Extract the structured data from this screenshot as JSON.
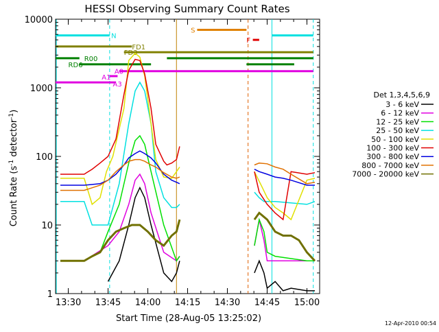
{
  "chart_data": {
    "type": "line",
    "title": "HESSI Observing Summary Count Rates",
    "xlabel": "Start Time (28-Aug-05 13:25:02)",
    "ylabel_main": "Count Rate (s",
    "ylabel_sup1": "-1",
    "ylabel_mid": " detector",
    "ylabel_sup2": "-1",
    "ylabel_end": ")",
    "x_range_min": [
      13.42,
      15.08
    ],
    "y_range": [
      1,
      10000
    ],
    "y_scale": "log",
    "x_ticks": [
      {
        "t": 13.5,
        "label": "13:30"
      },
      {
        "t": 13.75,
        "label": "13:45"
      },
      {
        "t": 14.0,
        "label": "14:00"
      },
      {
        "t": 14.25,
        "label": "14:15"
      },
      {
        "t": 14.5,
        "label": "14:30"
      },
      {
        "t": 14.75,
        "label": "14:45"
      },
      {
        "t": 15.0,
        "label": "15:00"
      }
    ],
    "y_ticks": [
      {
        "v": 1,
        "label": "1"
      },
      {
        "v": 10,
        "label": "10"
      },
      {
        "v": 100,
        "label": "100"
      },
      {
        "v": 1000,
        "label": "1000"
      },
      {
        "v": 10000,
        "label": "10000"
      }
    ],
    "legend_title": "Det 1,3,4,5,6,9",
    "legend_position": "right",
    "series": [
      {
        "name": "3 - 6 keV",
        "color": "#000000",
        "x": [
          13.45,
          13.6,
          13.75,
          13.82,
          13.88,
          13.92,
          13.95,
          13.98,
          14.02,
          14.1,
          14.15,
          14.18,
          14.2,
          14.3,
          14.65,
          14.67,
          14.7,
          14.73,
          14.75,
          14.8,
          14.85,
          14.9,
          15.0,
          15.05
        ],
        "y": [
          null,
          null,
          1.5,
          3,
          10,
          25,
          35,
          25,
          10,
          2,
          1.5,
          2,
          3,
          null,
          null,
          2,
          3,
          2,
          1.2,
          1.5,
          1.1,
          1.2,
          1.1,
          1.1
        ]
      },
      {
        "name": "6 - 12 keV",
        "color": "#e000e0",
        "x": [
          13.45,
          13.6,
          13.75,
          13.82,
          13.88,
          13.92,
          13.95,
          13.98,
          14.02,
          14.1,
          14.18,
          14.2,
          14.3,
          14.65,
          14.67,
          14.7,
          14.73,
          14.75,
          14.8,
          15.0,
          15.05
        ],
        "y": [
          3,
          3,
          5,
          8,
          20,
          45,
          55,
          40,
          15,
          4,
          3,
          3.5,
          null,
          null,
          5,
          12,
          6,
          3,
          3,
          3,
          3
        ]
      },
      {
        "name": "12 - 25 keV",
        "color": "#00e000",
        "x": [
          13.45,
          13.6,
          13.7,
          13.75,
          13.82,
          13.88,
          13.92,
          13.95,
          13.98,
          14.02,
          14.1,
          14.18,
          14.2,
          14.3,
          14.65,
          14.67,
          14.7,
          14.73,
          14.75,
          14.8,
          15.0,
          15.05
        ],
        "y": [
          3,
          3,
          4,
          8,
          20,
          80,
          170,
          200,
          150,
          60,
          10,
          3,
          3.5,
          null,
          null,
          5,
          12,
          8,
          4,
          3.5,
          3,
          3
        ]
      },
      {
        "name": "25 - 50 keV",
        "color": "#00e0e0",
        "x": [
          13.45,
          13.6,
          13.65,
          13.7,
          13.75,
          13.82,
          13.88,
          13.92,
          13.95,
          13.98,
          14.02,
          14.05,
          14.1,
          14.15,
          14.18,
          14.2,
          14.3,
          14.65,
          14.67,
          14.7,
          14.73,
          14.75,
          14.8,
          15.0,
          15.05
        ],
        "y": [
          22,
          22,
          10,
          10,
          10,
          40,
          300,
          900,
          1200,
          900,
          300,
          60,
          25,
          18,
          18,
          20,
          null,
          null,
          30,
          25,
          22,
          22,
          22,
          20,
          22
        ]
      },
      {
        "name": "50 - 100 keV",
        "color": "#e0e000",
        "x": [
          13.45,
          13.6,
          13.65,
          13.7,
          13.74,
          13.78,
          13.85,
          13.88,
          13.92,
          13.95,
          13.98,
          14.02,
          14.05,
          14.1,
          14.15,
          14.18,
          14.2,
          14.3,
          14.65,
          14.67,
          14.72,
          14.75,
          14.8,
          14.85,
          14.9,
          15.0,
          15.05
        ],
        "y": [
          48,
          48,
          20,
          25,
          60,
          100,
          500,
          2500,
          3200,
          2800,
          1500,
          300,
          90,
          50,
          48,
          60,
          70,
          null,
          null,
          60,
          35,
          25,
          18,
          15,
          12,
          45,
          48
        ]
      },
      {
        "name": "100 - 300 keV",
        "color": "#e00000",
        "x": [
          13.45,
          13.6,
          13.65,
          13.7,
          13.75,
          13.8,
          13.85,
          13.88,
          13.92,
          13.95,
          13.98,
          14.02,
          14.05,
          14.1,
          14.12,
          14.15,
          14.18,
          14.2,
          14.3,
          14.65,
          14.67,
          14.7,
          14.75,
          14.8,
          14.85,
          14.9,
          15.0,
          15.05
        ],
        "y": [
          55,
          55,
          65,
          80,
          100,
          180,
          800,
          1800,
          2600,
          2500,
          1600,
          500,
          150,
          85,
          75,
          80,
          90,
          140,
          null,
          null,
          60,
          30,
          20,
          15,
          12,
          60,
          55,
          58
        ]
      },
      {
        "name": "300 - 800 keV",
        "color": "#0000e0",
        "x": [
          13.45,
          13.6,
          13.7,
          13.75,
          13.8,
          13.85,
          13.88,
          13.92,
          13.95,
          13.98,
          14.02,
          14.05,
          14.1,
          14.15,
          14.18,
          14.2,
          14.3,
          14.65,
          14.67,
          14.7,
          14.75,
          14.8,
          14.85,
          14.9,
          15.0,
          15.05
        ],
        "y": [
          38,
          38,
          40,
          45,
          55,
          75,
          95,
          110,
          120,
          110,
          95,
          80,
          55,
          45,
          42,
          40,
          null,
          null,
          65,
          60,
          55,
          50,
          48,
          45,
          38,
          38
        ]
      },
      {
        "name": "800 - 7000 keV",
        "color": "#e07000",
        "x": [
          13.45,
          13.6,
          13.7,
          13.75,
          13.8,
          13.85,
          13.88,
          13.92,
          13.95,
          13.98,
          14.02,
          14.05,
          14.1,
          14.15,
          14.18,
          14.2,
          14.3,
          14.65,
          14.67,
          14.7,
          14.75,
          14.8,
          14.85,
          14.9,
          15.0,
          15.05
        ],
        "y": [
          32,
          32,
          38,
          45,
          60,
          75,
          85,
          90,
          90,
          85,
          75,
          70,
          58,
          50,
          48,
          50,
          null,
          null,
          75,
          80,
          78,
          70,
          65,
          55,
          40,
          42
        ]
      },
      {
        "name": "7000 - 20000 keV",
        "color": "#707000",
        "x": [
          13.45,
          13.6,
          13.65,
          13.7,
          13.75,
          13.8,
          13.85,
          13.9,
          13.95,
          14.0,
          14.05,
          14.1,
          14.15,
          14.18,
          14.2,
          14.3,
          14.65,
          14.67,
          14.7,
          14.75,
          14.8,
          14.85,
          14.9,
          14.95,
          15.0,
          15.05
        ],
        "y": [
          3,
          3,
          3.5,
          4,
          6,
          8,
          9,
          10,
          10,
          8,
          6,
          5,
          7,
          8,
          12,
          null,
          null,
          12,
          15,
          12,
          8,
          7,
          7,
          6,
          4,
          3
        ]
      }
    ],
    "attenuator_labels": [
      {
        "text": "N",
        "color": "#00e0e0"
      },
      {
        "text": "FD1",
        "color": "#808000"
      },
      {
        "text": "FD3",
        "color": "#808000"
      },
      {
        "text": "R00",
        "color": "#008000"
      },
      {
        "text": "RD6",
        "color": "#008000"
      },
      {
        "text": "A0",
        "color": "#e000e0"
      },
      {
        "text": "A1",
        "color": "#e000e0"
      },
      {
        "text": "A3",
        "color": "#e000e0"
      },
      {
        "text": "S",
        "color": "#e08000"
      },
      {
        "text": "F",
        "color": "#e00000"
      }
    ],
    "bar_segments": [
      {
        "label": "N",
        "color": "#00e0e0",
        "value": 5800,
        "t0": 13.42,
        "t1": 13.76
      },
      {
        "label": "N",
        "color": "#00e0e0",
        "value": 5800,
        "t0": 14.78,
        "t1": 15.04
      },
      {
        "label": "FD1",
        "color": "#808000",
        "value": 4000,
        "t0": 13.42,
        "t1": 13.9
      },
      {
        "label": "FD3",
        "color": "#808000",
        "value": 3300,
        "t0": 13.85,
        "t1": 15.04
      },
      {
        "label": "R00",
        "color": "#008000",
        "value": 2700,
        "t0": 13.42,
        "t1": 13.57
      },
      {
        "label": "R00",
        "color": "#008000",
        "value": 2700,
        "t0": 14.12,
        "t1": 15.04
      },
      {
        "label": "RD6",
        "color": "#008000",
        "value": 2200,
        "t0": 13.57,
        "t1": 14.02
      },
      {
        "label": "RD6",
        "color": "#008000",
        "value": 2200,
        "t0": 14.62,
        "t1": 14.92
      },
      {
        "label": "A0",
        "color": "#e000e0",
        "value": 1750,
        "t0": 13.82,
        "t1": 15.04
      },
      {
        "label": "A1",
        "color": "#e000e0",
        "value": 1480,
        "t0": 13.76,
        "t1": 13.81
      },
      {
        "label": "A3",
        "color": "#e000e0",
        "value": 1200,
        "t0": 13.42,
        "t1": 13.8
      },
      {
        "label": "S",
        "color": "#e08000",
        "value": 7000,
        "t0": 14.31,
        "t1": 14.62
      },
      {
        "label": "F",
        "color": "#e00000",
        "value": 5000,
        "t0": 14.66,
        "t1": 14.7
      }
    ],
    "timestamp": "12-Apr-2010 00:54"
  }
}
